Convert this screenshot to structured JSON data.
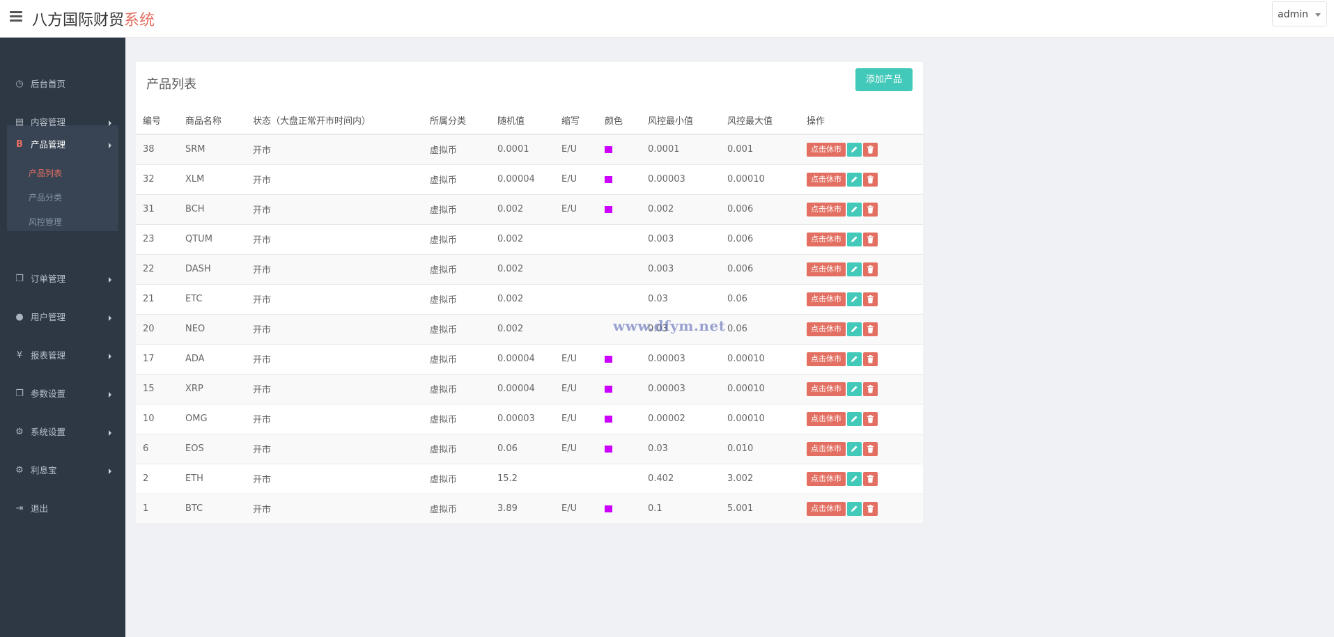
{
  "header": {
    "brand_main": "八方国际财贸",
    "brand_accent": "系统",
    "user_label": "admin"
  },
  "sidebar": {
    "items": [
      {
        "label": "后台首页",
        "icon": "dashboard-icon",
        "glyph": "◷"
      },
      {
        "label": "内容管理",
        "icon": "book-icon",
        "glyph": "▤"
      },
      {
        "label": "订单管理",
        "icon": "copy-icon",
        "glyph": "❐"
      },
      {
        "label": "用户管理",
        "icon": "user-icon",
        "glyph": "●"
      },
      {
        "label": "报表管理",
        "icon": "yen-icon",
        "glyph": "¥"
      },
      {
        "label": "参数设置",
        "icon": "copy-icon",
        "glyph": "❐"
      },
      {
        "label": "系统设置",
        "icon": "gears-icon",
        "glyph": "⚙"
      },
      {
        "label": "利息宝",
        "icon": "gears-icon",
        "glyph": "⚙"
      },
      {
        "label": "退出",
        "icon": "sign-out-icon",
        "glyph": "⇥"
      }
    ],
    "product_group": {
      "label": "产品管理",
      "icon": "bitcoin-icon",
      "glyph": "B",
      "sub_items": [
        "产品列表",
        "产品分类",
        "风控管理"
      ],
      "active_sub": "产品列表"
    }
  },
  "main": {
    "title": "产品列表",
    "add_button": "添加产品",
    "columns": [
      "编号",
      "商品名称",
      "状态（大盘正常开市时间内）",
      "所属分类",
      "随机值",
      "缩写",
      "颜色",
      "风控最小值",
      "风控最大值",
      "操作"
    ],
    "action_label": "点击休市",
    "rows": [
      {
        "id": "38",
        "name": "SRM",
        "status": "开市",
        "category": "虚拟币",
        "random": "0.0001",
        "abbr": "E/U",
        "color": "#cc00ff",
        "min": "0.0001",
        "max": "0.001"
      },
      {
        "id": "32",
        "name": "XLM",
        "status": "开市",
        "category": "虚拟币",
        "random": "0.00004",
        "abbr": "E/U",
        "color": "#cc00ff",
        "min": "0.00003",
        "max": "0.00010"
      },
      {
        "id": "31",
        "name": "BCH",
        "status": "开市",
        "category": "虚拟币",
        "random": "0.002",
        "abbr": "E/U",
        "color": "#cc00ff",
        "min": "0.002",
        "max": "0.006"
      },
      {
        "id": "23",
        "name": "QTUM",
        "status": "开市",
        "category": "虚拟币",
        "random": "0.002",
        "abbr": "",
        "color": "",
        "min": "0.003",
        "max": "0.006"
      },
      {
        "id": "22",
        "name": "DASH",
        "status": "开市",
        "category": "虚拟币",
        "random": "0.002",
        "abbr": "",
        "color": "",
        "min": "0.003",
        "max": "0.006"
      },
      {
        "id": "21",
        "name": "ETC",
        "status": "开市",
        "category": "虚拟币",
        "random": "0.002",
        "abbr": "",
        "color": "",
        "min": "0.03",
        "max": "0.06"
      },
      {
        "id": "20",
        "name": "NEO",
        "status": "开市",
        "category": "虚拟币",
        "random": "0.002",
        "abbr": "",
        "color": "",
        "min": "0.03",
        "max": "0.06"
      },
      {
        "id": "17",
        "name": "ADA",
        "status": "开市",
        "category": "虚拟币",
        "random": "0.00004",
        "abbr": "E/U",
        "color": "#cc00ff",
        "min": "0.00003",
        "max": "0.00010"
      },
      {
        "id": "15",
        "name": "XRP",
        "status": "开市",
        "category": "虚拟币",
        "random": "0.00004",
        "abbr": "E/U",
        "color": "#cc00ff",
        "min": "0.00003",
        "max": "0.00010"
      },
      {
        "id": "10",
        "name": "OMG",
        "status": "开市",
        "category": "虚拟币",
        "random": "0.00003",
        "abbr": "E/U",
        "color": "#cc00ff",
        "min": "0.00002",
        "max": "0.00010"
      },
      {
        "id": "6",
        "name": "EOS",
        "status": "开市",
        "category": "虚拟币",
        "random": "0.06",
        "abbr": "E/U",
        "color": "#cc00ff",
        "min": "0.03",
        "max": "0.010"
      },
      {
        "id": "2",
        "name": "ETH",
        "status": "开市",
        "category": "虚拟币",
        "random": "15.2",
        "abbr": "",
        "color": "",
        "min": "0.402",
        "max": "3.002"
      },
      {
        "id": "1",
        "name": "BTC",
        "status": "开市",
        "category": "虚拟币",
        "random": "3.89",
        "abbr": "E/U",
        "color": "#cc00ff",
        "min": "0.1",
        "max": "5.001"
      }
    ]
  },
  "watermark": "www.dfym.net"
}
